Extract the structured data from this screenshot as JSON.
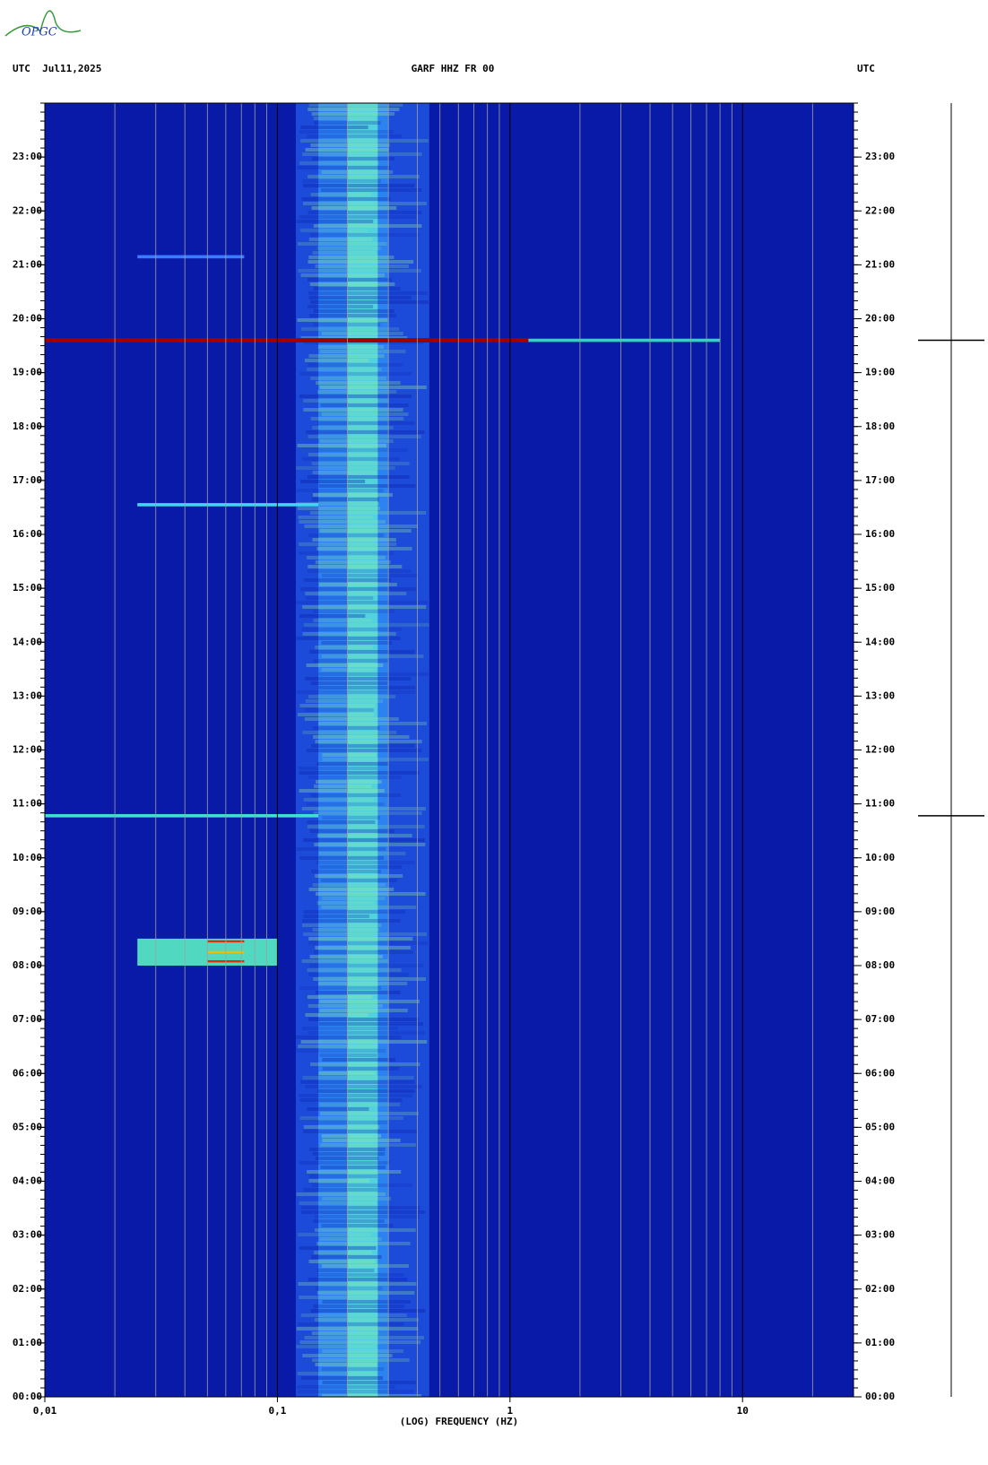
{
  "logo": "OPGC",
  "chart_data": {
    "type": "spectrogram",
    "header_left": "UTC  Jul11,2025",
    "title": "GARF HHZ FR 00",
    "header_right": "UTC",
    "x_label": "(LOG) FREQUENCY (HZ)",
    "x_log": true,
    "xlim": [
      0.01,
      30
    ],
    "xticks": [
      {
        "value": 0.01,
        "label": "0,01"
      },
      {
        "value": 0.1,
        "label": "0,1"
      },
      1,
      10
    ],
    "ylim": [
      0,
      24
    ],
    "yticks": [
      {
        "value": 0,
        "label": "00:00"
      },
      {
        "value": 1,
        "label": "01:00"
      },
      {
        "value": 2,
        "label": "02:00"
      },
      {
        "value": 3,
        "label": "03:00"
      },
      {
        "value": 4,
        "label": "04:00"
      },
      {
        "value": 5,
        "label": "05:00"
      },
      {
        "value": 6,
        "label": "06:00"
      },
      {
        "value": 7,
        "label": "07:00"
      },
      {
        "value": 8,
        "label": "08:00"
      },
      {
        "value": 9,
        "label": "09:00"
      },
      {
        "value": 10,
        "label": "10:00"
      },
      {
        "value": 11,
        "label": "11:00"
      },
      {
        "value": 12,
        "label": "12:00"
      },
      {
        "value": 13,
        "label": "13:00"
      },
      {
        "value": 14,
        "label": "14:00"
      },
      {
        "value": 15,
        "label": "15:00"
      },
      {
        "value": 16,
        "label": "16:00"
      },
      {
        "value": 17,
        "label": "17:00"
      },
      {
        "value": 18,
        "label": "18:00"
      },
      {
        "value": 19,
        "label": "19:00"
      },
      {
        "value": 20,
        "label": "20:00"
      },
      {
        "value": 21,
        "label": "21:00"
      },
      {
        "value": 22,
        "label": "22:00"
      },
      {
        "value": 23,
        "label": "23:00"
      }
    ],
    "background": "#0a1aa8",
    "bands": [
      {
        "fmin": 0.12,
        "fmax": 0.45,
        "color": "#1f55e0"
      },
      {
        "fmin": 0.15,
        "fmax": 0.3,
        "color": "#2f8cf5"
      },
      {
        "fmin": 0.2,
        "fmax": 0.27,
        "color": "#58e0d8"
      }
    ],
    "events": [
      {
        "t0": 21.12,
        "t1": 21.18,
        "fmin": 0.025,
        "fmax": 0.072,
        "color": "#3a7cff"
      },
      {
        "t0": 19.56,
        "t1": 19.64,
        "fmin": 0.01,
        "fmax": 1.2,
        "color": "#a00000"
      },
      {
        "t0": 19.57,
        "t1": 19.63,
        "fmin": 1.2,
        "fmax": 8,
        "color": "#40c8d0"
      },
      {
        "t0": 16.52,
        "t1": 16.58,
        "fmin": 0.025,
        "fmax": 0.15,
        "color": "#40d8f0"
      },
      {
        "t0": 10.75,
        "t1": 10.81,
        "fmin": 0.01,
        "fmax": 0.15,
        "color": "#40e0d0"
      },
      {
        "t0": 8.0,
        "t1": 8.5,
        "fmin": 0.025,
        "fmax": 0.1,
        "color": "#50d8c0"
      },
      {
        "t0": 8.43,
        "t1": 8.47,
        "fmin": 0.05,
        "fmax": 0.072,
        "color": "#e03000"
      },
      {
        "t0": 8.23,
        "t1": 8.27,
        "fmin": 0.05,
        "fmax": 0.072,
        "color": "#e8c000"
      },
      {
        "t0": 8.06,
        "t1": 8.1,
        "fmin": 0.05,
        "fmax": 0.072,
        "color": "#e03000"
      }
    ]
  }
}
